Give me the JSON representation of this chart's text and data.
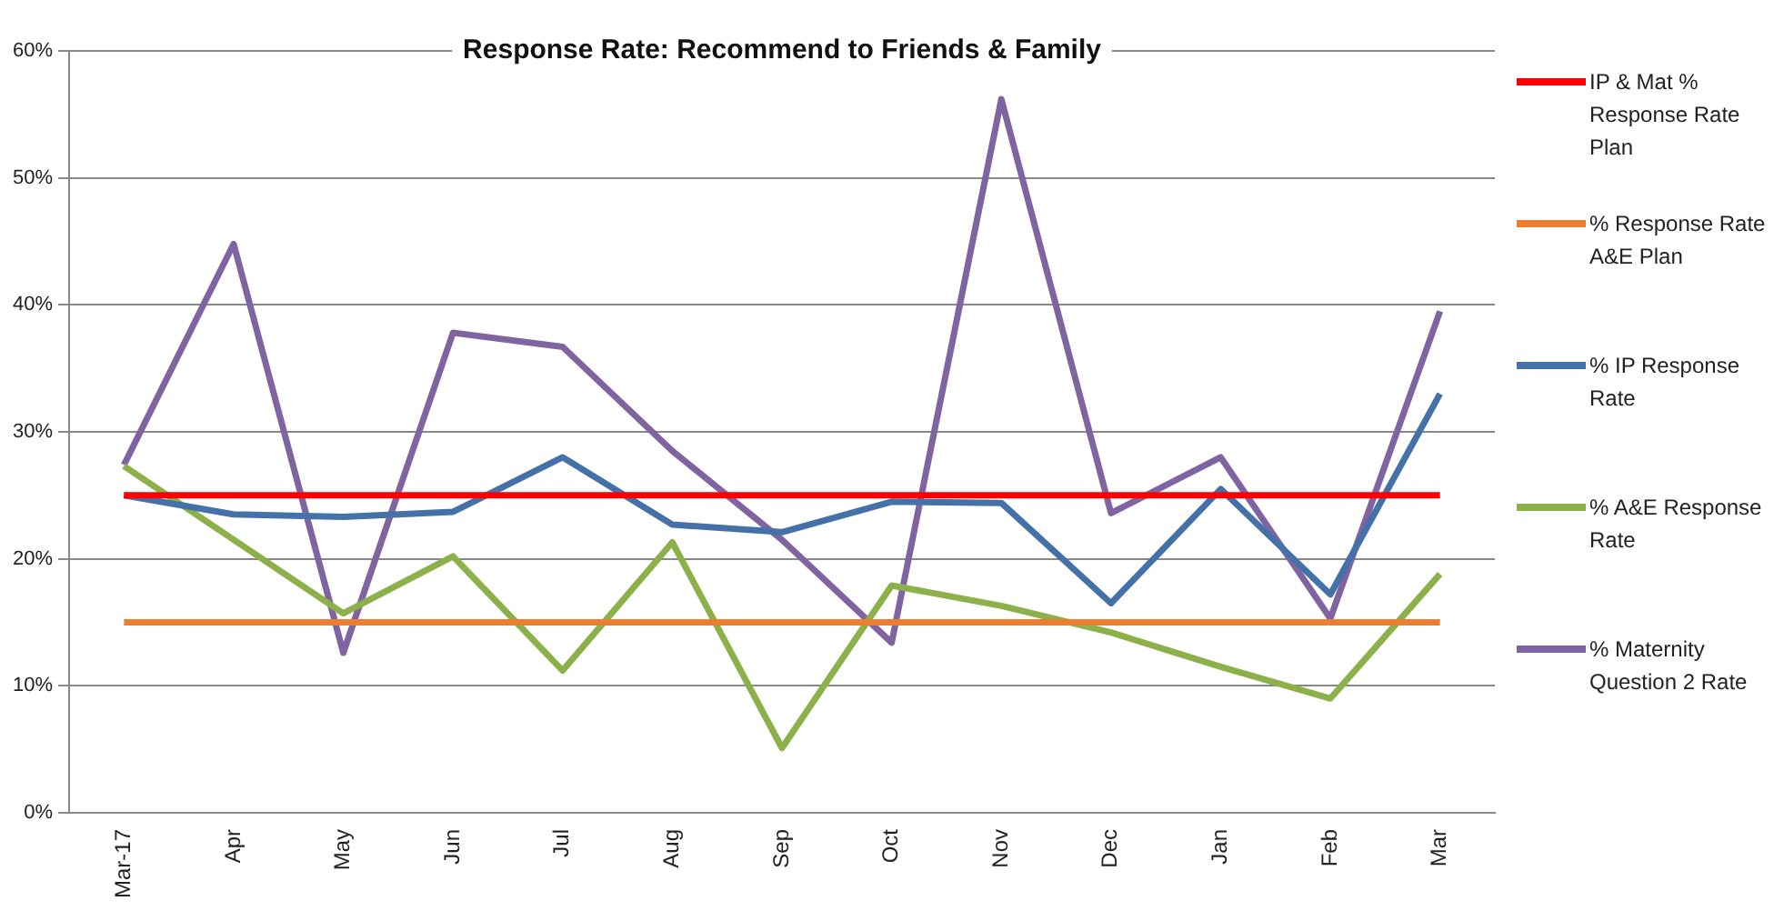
{
  "chart_data": {
    "type": "line",
    "title": "Response Rate: Recommend to Friends & Family",
    "categories": [
      "Mar-17",
      "Apr",
      "May",
      "Jun",
      "Jul",
      "Aug",
      "Sep",
      "Oct",
      "Nov",
      "Dec",
      "Jan",
      "Feb",
      "Mar"
    ],
    "ylim": [
      0,
      60
    ],
    "yticks": [
      {
        "value": 0,
        "label": "0%"
      },
      {
        "value": 10,
        "label": "10%"
      },
      {
        "value": 20,
        "label": "20%"
      },
      {
        "value": 30,
        "label": "30%"
      },
      {
        "value": 40,
        "label": "40%"
      },
      {
        "value": 50,
        "label": "50%"
      },
      {
        "value": 60,
        "label": "60%"
      }
    ],
    "grid": "y",
    "legend": "right",
    "marker": "none",
    "line_style": "solid",
    "series": [
      {
        "name": "IP & Mat % Response Rate Plan",
        "color": "#ff0000",
        "values": [
          25,
          25,
          25,
          25,
          25,
          25,
          25,
          25,
          25,
          25,
          25,
          25,
          25
        ]
      },
      {
        "name": "% Response Rate A&E Plan",
        "color": "#ed7d31",
        "values": [
          15,
          15,
          15,
          15,
          15,
          15,
          15,
          15,
          15,
          15,
          15,
          15,
          15
        ]
      },
      {
        "name": "% IP Response Rate",
        "color": "#4472a8",
        "values": [
          25,
          23.5,
          23.3,
          23.7,
          28,
          22.7,
          22.1,
          24.5,
          24.4,
          16.5,
          25.5,
          17.2,
          33
        ]
      },
      {
        "name": "% A&E Response Rate",
        "color": "#8cb04a",
        "values": [
          27.3,
          21.5,
          15.7,
          20.2,
          11.2,
          21.3,
          5.1,
          17.9,
          16.3,
          14.2,
          11.5,
          9,
          18.8
        ]
      },
      {
        "name": "% Maternity Question 2 Rate",
        "color": "#8064a2",
        "values": [
          27.4,
          44.8,
          12.6,
          37.8,
          36.7,
          28.5,
          21.5,
          13.4,
          56.2,
          23.6,
          28,
          15.3,
          39.5
        ]
      }
    ]
  }
}
